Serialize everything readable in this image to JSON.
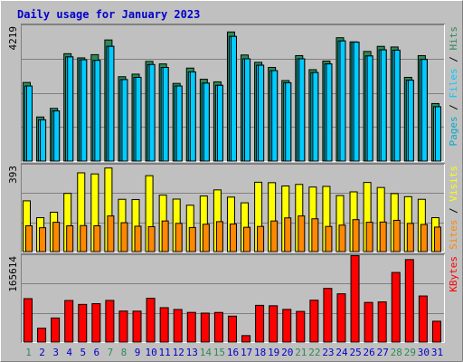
{
  "title": "Daily usage for January 2023",
  "colors": {
    "background": "#c0c0c0",
    "title": "#0000cc",
    "hits": "#2e8b57",
    "files": "#00ccff",
    "pages": "#00aacc",
    "visits": "#ffff00",
    "sites": "#ff8800",
    "kbytes": "#ff0000",
    "weekend_label": "#2e8b57",
    "weekday_label": "#0000cc"
  },
  "chart_data": [
    {
      "type": "bar",
      "panel": "hits-files-pages",
      "categories": [
        "1",
        "2",
        "3",
        "4",
        "5",
        "6",
        "7",
        "8",
        "9",
        "10",
        "11",
        "12",
        "13",
        "14",
        "15",
        "16",
        "17",
        "18",
        "19",
        "20",
        "21",
        "22",
        "23",
        "24",
        "25",
        "26",
        "27",
        "28",
        "29",
        "30",
        "31"
      ],
      "ymax_label": "4219",
      "ylim": [
        0,
        4219
      ],
      "series": [
        {
          "name": "Hits",
          "values": [
            2460,
            1380,
            1650,
            3360,
            3230,
            3330,
            3790,
            2640,
            2720,
            3120,
            3040,
            2430,
            2910,
            2560,
            2480,
            4040,
            3320,
            3090,
            2930,
            2520,
            3300,
            2860,
            3130,
            3860,
            3730,
            3430,
            3590,
            3570,
            2620,
            3300,
            1800
          ]
        },
        {
          "name": "Files",
          "values": [
            2350,
            1290,
            1570,
            3260,
            3170,
            3150,
            3590,
            2550,
            2620,
            3020,
            2930,
            2350,
            2790,
            2440,
            2370,
            3900,
            3200,
            3000,
            2830,
            2450,
            3200,
            2770,
            3040,
            3760,
            3720,
            3290,
            3480,
            3470,
            2530,
            3180,
            1700
          ]
        },
        {
          "name": "Pages",
          "values": [
            2350,
            1290,
            1570,
            3260,
            3170,
            3150,
            3590,
            2550,
            2620,
            3020,
            2930,
            2350,
            2790,
            2440,
            2370,
            3900,
            3200,
            3000,
            2830,
            2450,
            3200,
            2770,
            3040,
            3760,
            3720,
            3290,
            3480,
            3470,
            2530,
            3180,
            1700
          ]
        }
      ],
      "series_order_note": "",
      "legend": [
        "Pages",
        "Files",
        "Hits"
      ]
    },
    {
      "type": "bar",
      "panel": "sites-visits",
      "categories": [
        "1",
        "2",
        "3",
        "4",
        "5",
        "6",
        "7",
        "8",
        "9",
        "10",
        "11",
        "12",
        "13",
        "14",
        "15",
        "16",
        "17",
        "18",
        "19",
        "20",
        "21",
        "22",
        "23",
        "24",
        "25",
        "26",
        "27",
        "28",
        "29",
        "30",
        "31"
      ],
      "ymax_label": "393",
      "ylim": [
        0,
        393
      ],
      "series": [
        {
          "name": "Visits",
          "values": [
            232,
            155,
            180,
            266,
            360,
            355,
            382,
            239,
            238,
            347,
            258,
            240,
            212,
            254,
            282,
            249,
            223,
            317,
            315,
            300,
            307,
            295,
            298,
            256,
            273,
            316,
            293,
            265,
            251,
            239,
            155
          ]
        },
        {
          "name": "Sites",
          "values": [
            118,
            109,
            134,
            118,
            119,
            118,
            163,
            132,
            116,
            114,
            140,
            129,
            110,
            125,
            137,
            126,
            111,
            115,
            140,
            154,
            163,
            150,
            115,
            121,
            146,
            134,
            135,
            143,
            129,
            124,
            112
          ]
        }
      ],
      "legend": [
        "Sites",
        "Visits"
      ]
    },
    {
      "type": "bar",
      "panel": "kbytes",
      "categories": [
        "1",
        "2",
        "3",
        "4",
        "5",
        "6",
        "7",
        "8",
        "9",
        "10",
        "11",
        "12",
        "13",
        "14",
        "15",
        "16",
        "17",
        "18",
        "19",
        "20",
        "21",
        "22",
        "23",
        "24",
        "25",
        "26",
        "27",
        "28",
        "29",
        "30",
        "31"
      ],
      "ymax_label": "165614",
      "ylim": [
        0,
        165614
      ],
      "series": [
        {
          "name": "KBytes",
          "values": [
            83700,
            26700,
            46400,
            80100,
            72600,
            74000,
            80300,
            59800,
            59600,
            84400,
            66300,
            62800,
            57200,
            55800,
            57100,
            50000,
            12500,
            70800,
            70000,
            63000,
            59100,
            80700,
            103400,
            93000,
            166400,
            76400,
            77400,
            134100,
            158900,
            88800,
            40200
          ]
        }
      ],
      "legend": [
        "KBytes"
      ]
    }
  ],
  "weekend_days": [
    "1",
    "7",
    "8",
    "14",
    "15",
    "21",
    "22",
    "28",
    "29"
  ]
}
